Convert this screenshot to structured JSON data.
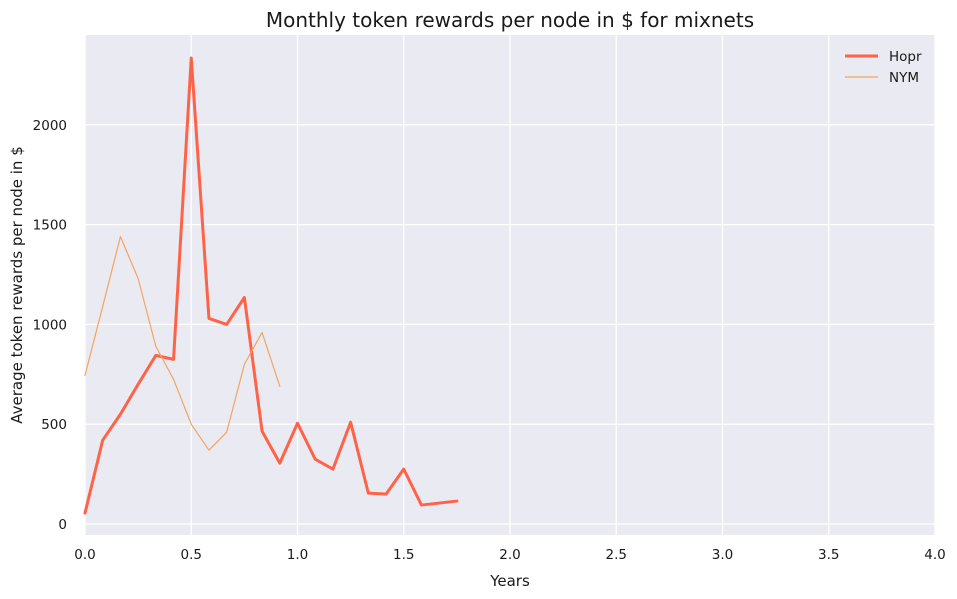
{
  "chart_data": {
    "type": "line",
    "title": "Monthly token rewards per node in $ for mixnets",
    "xlabel": "Years",
    "ylabel": "Average token rewards per node in  $",
    "xlim": [
      0,
      4
    ],
    "ylim": [
      -55,
      2450
    ],
    "xticks": [
      0,
      0.5,
      1,
      1.5,
      2,
      2.5,
      3,
      3.5,
      4
    ],
    "xtick_labels": [
      "0.0",
      "0.5",
      "1.0",
      "1.5",
      "2.0",
      "2.5",
      "3.0",
      "3.5",
      "4.0"
    ],
    "yticks": [
      0,
      500,
      1000,
      1500,
      2000
    ],
    "ytick_labels": [
      "0",
      "500",
      "1000",
      "1500",
      "2000"
    ],
    "grid": true,
    "legend_position": "top-right",
    "background_color": "#eaeaf2",
    "series": [
      {
        "name": "Hopr",
        "color": "#ff6347",
        "line_width": "thick",
        "x": [
          0,
          0.0833,
          0.1667,
          0.25,
          0.3333,
          0.4167,
          0.5,
          0.5833,
          0.6667,
          0.75,
          0.8333,
          0.9167,
          1.0,
          1.0833,
          1.1667,
          1.25,
          1.3333,
          1.4167,
          1.5,
          1.5833,
          1.6667,
          1.75
        ],
        "y": [
          55,
          420,
          550,
          700,
          845,
          825,
          2335,
          1030,
          1000,
          1135,
          465,
          305,
          505,
          325,
          275,
          510,
          155,
          150,
          275,
          95,
          105,
          115
        ]
      },
      {
        "name": "NYM",
        "color": "#f4a460",
        "line_width": "thin",
        "x": [
          0,
          0.0833,
          0.1667,
          0.25,
          0.3333,
          0.4167,
          0.5,
          0.5833,
          0.6667,
          0.75,
          0.8333,
          0.9167
        ],
        "y": [
          745,
          1090,
          1440,
          1230,
          890,
          725,
          500,
          370,
          460,
          800,
          960,
          690
        ]
      }
    ]
  }
}
